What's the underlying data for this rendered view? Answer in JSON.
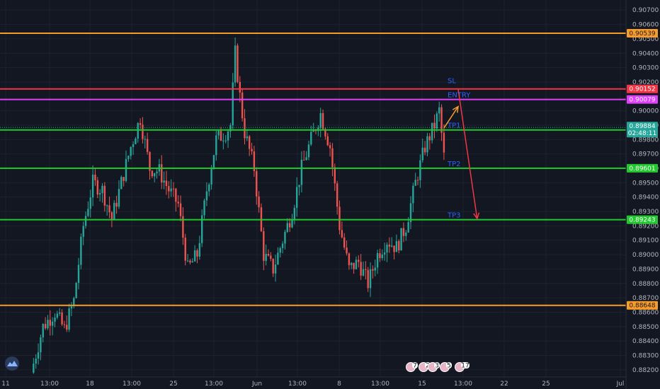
{
  "colors": {
    "background": "#131722",
    "grid": "#1e222d",
    "up": "#26a69a",
    "down": "#ef5350",
    "orange": "#f89b29",
    "red": "#f23645",
    "magenta": "#e040fb",
    "green": "#22c92e",
    "teal_tag": "#26a69a",
    "label_blue": "#2962ff"
  },
  "logo_icon": "tradingview-cloud-icon",
  "event_badges": [
    "7",
    "2",
    "3",
    "5",
    "17"
  ],
  "chart_data": {
    "type": "candlestick",
    "ylim": [
      0.8815,
      0.9077
    ],
    "y_ticks": [
      "0.90700",
      "0.90600",
      "0.90500",
      "0.90400",
      "0.90300",
      "0.90200",
      "0.90000",
      "0.89900",
      "0.89800",
      "0.89700",
      "0.89600",
      "0.89500",
      "0.89400",
      "0.89300",
      "0.89200",
      "0.89100",
      "0.89000",
      "0.88900",
      "0.88800",
      "0.88700",
      "0.88600",
      "0.88500",
      "0.88400",
      "0.88300",
      "0.88200"
    ],
    "x_ticks": [
      "11",
      "13:00",
      "18",
      "13:00",
      "25",
      "13:00",
      "Jun",
      "13:00",
      "8",
      "13:00",
      "15",
      "13:00",
      "22",
      "25",
      "Jul"
    ],
    "levels": [
      {
        "name": "",
        "price": 0.90539,
        "tag": "0.90539",
        "color": "orange"
      },
      {
        "name": "SL",
        "price": 0.90152,
        "tag": "0.90152",
        "color": "red"
      },
      {
        "name": "ENTRY",
        "price": 0.90079,
        "tag": "0.90079",
        "color": "magenta"
      },
      {
        "name": "TP1",
        "price": 0.89867,
        "tag": "0.89867",
        "color": "green"
      },
      {
        "name": "TP2",
        "price": 0.89601,
        "tag": "0.89601",
        "color": "green"
      },
      {
        "name": "TP3",
        "price": 0.89243,
        "tag": "0.89243",
        "color": "green"
      },
      {
        "name": "",
        "price": 0.88648,
        "tag": "0.88648",
        "color": "orange"
      }
    ],
    "last_price": {
      "price": "0.89884",
      "countdown": "02:48:11"
    },
    "anchors": [
      [
        0,
        0.8818
      ],
      [
        5,
        0.885
      ],
      [
        10,
        0.886
      ],
      [
        14,
        0.8848
      ],
      [
        18,
        0.8868
      ],
      [
        22,
        0.892
      ],
      [
        26,
        0.895
      ],
      [
        30,
        0.8945
      ],
      [
        34,
        0.8925
      ],
      [
        38,
        0.895
      ],
      [
        42,
        0.8975
      ],
      [
        46,
        0.8995
      ],
      [
        50,
        0.896
      ],
      [
        54,
        0.8958
      ],
      [
        58,
        0.8945
      ],
      [
        62,
        0.8935
      ],
      [
        66,
        0.889
      ],
      [
        70,
        0.89
      ],
      [
        74,
        0.8945
      ],
      [
        78,
        0.898
      ],
      [
        82,
        0.8985
      ],
      [
        84,
        0.899
      ],
      [
        86,
        0.904
      ],
      [
        88,
        0.901
      ],
      [
        90,
        0.8985
      ],
      [
        94,
        0.896
      ],
      [
        98,
        0.89
      ],
      [
        102,
        0.889
      ],
      [
        106,
        0.891
      ],
      [
        110,
        0.893
      ],
      [
        114,
        0.896
      ],
      [
        118,
        0.898
      ],
      [
        122,
        0.8998
      ],
      [
        126,
        0.8975
      ],
      [
        130,
        0.892
      ],
      [
        134,
        0.889
      ],
      [
        138,
        0.8895
      ],
      [
        142,
        0.888
      ],
      [
        146,
        0.89
      ],
      [
        150,
        0.891
      ],
      [
        154,
        0.8905
      ],
      [
        158,
        0.892
      ],
      [
        162,
        0.895
      ],
      [
        166,
        0.8975
      ],
      [
        170,
        0.899
      ],
      [
        172,
        0.9
      ],
      [
        174,
        0.8968
      ]
    ],
    "arrows": {
      "orange": [
        [
          174,
          0.8988
        ],
        [
          180,
          0.9003
        ]
      ],
      "red": [
        [
          180,
          0.9015
        ],
        [
          188,
          0.8925
        ]
      ]
    }
  }
}
